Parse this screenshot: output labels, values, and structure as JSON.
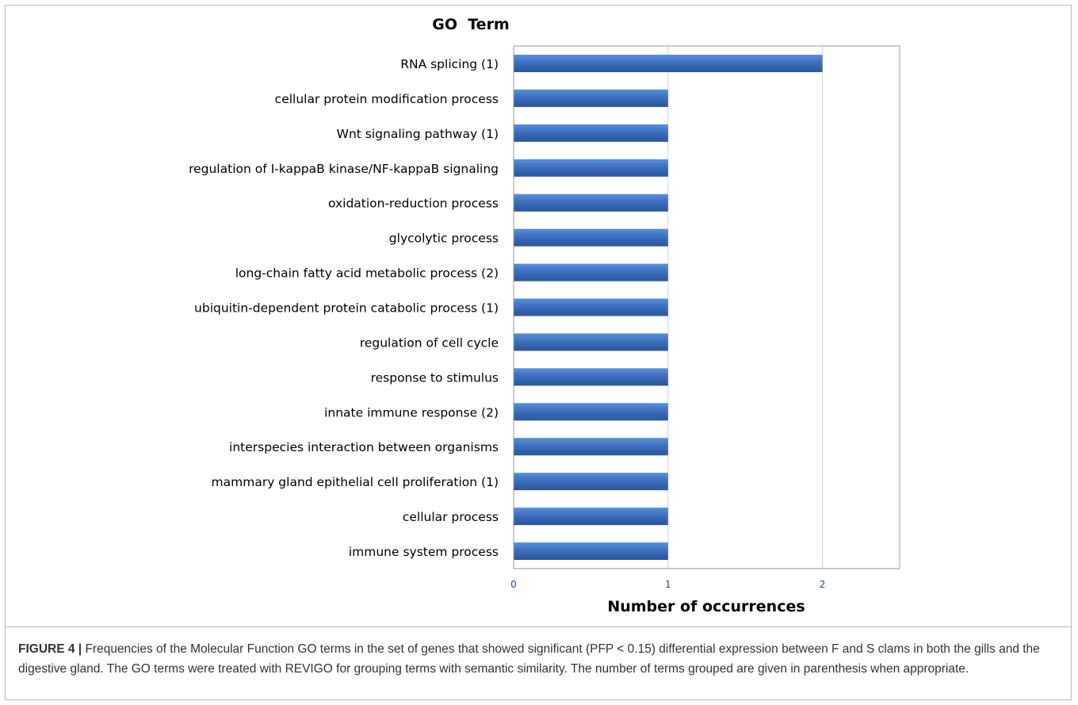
{
  "chart_data": {
    "type": "bar",
    "orientation": "horizontal",
    "title": "GO  Term",
    "xlabel": "Number of occurrences",
    "ylabel": "",
    "xlim": [
      0,
      2.5
    ],
    "x_ticks": [
      "0",
      "1",
      "2"
    ],
    "grid": true,
    "categories": [
      "RNA splicing (1)",
      "cellular protein modification process",
      "Wnt signaling pathway (1)",
      "regulation of I-kappaB kinase/NF-kappaB signaling",
      "oxidation-reduction process",
      "glycolytic process",
      "long-chain fatty acid metabolic process (2)",
      "ubiquitin-dependent protein catabolic process (1)",
      "regulation of cell cycle",
      "response to stimulus",
      "innate immune response (2)",
      "interspecies interaction between organisms",
      "mammary gland epithelial cell proliferation (1)",
      "cellular process",
      "immune system process"
    ],
    "values": [
      2,
      1,
      1,
      1,
      1,
      1,
      1,
      1,
      1,
      1,
      1,
      1,
      1,
      1,
      1
    ],
    "colors": {
      "bar": "#3c6fbf",
      "bar_dark": "#2a5599",
      "grid": "#c7d6ea",
      "tick": "#1f4e8c",
      "label": "#000000"
    }
  },
  "caption": {
    "label": "FIGURE 4 |",
    "text": " Frequencies of the Molecular Function GO terms in the set of genes that showed significant (PFP < 0.15) differential expression between F and S clams in both the gills and the digestive gland. The GO terms were treated with REVIGO for grouping terms with semantic similarity. The number of terms grouped are given in parenthesis when appropriate."
  }
}
